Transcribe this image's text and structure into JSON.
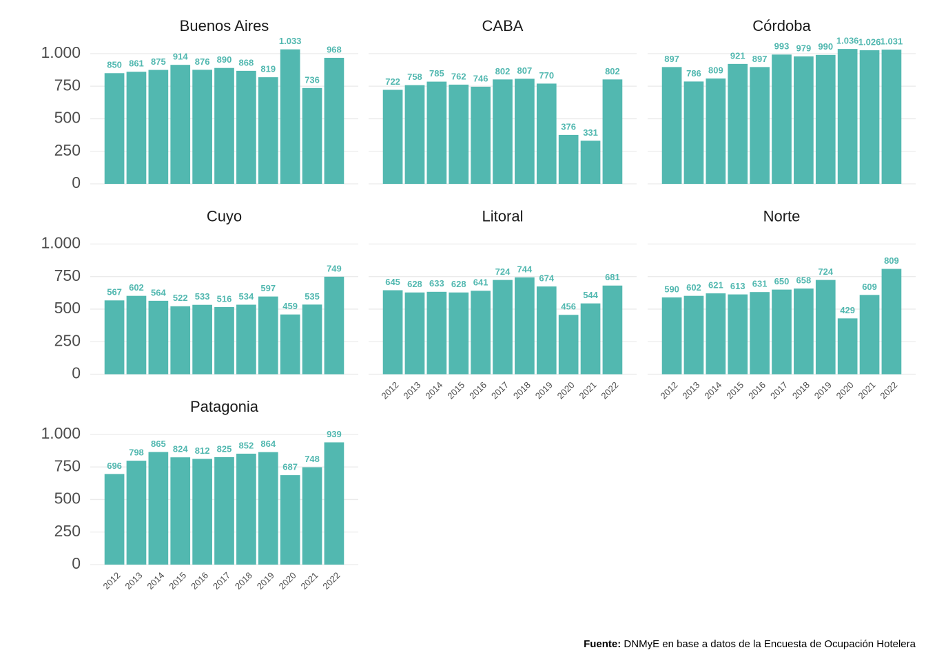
{
  "chart_data": [
    {
      "type": "bar",
      "title": "Buenos Aires",
      "categories": [
        null,
        null,
        null,
        null,
        null,
        null,
        null,
        null,
        null,
        null,
        null
      ],
      "values": [
        850,
        861,
        875,
        914,
        876,
        890,
        868,
        819,
        1033,
        736,
        968
      ],
      "value_labels": [
        "850",
        "861",
        "875",
        "914",
        "876",
        "890",
        "868",
        "819",
        "1.033",
        "736",
        "968"
      ],
      "color": "#52b8b0",
      "ylim": [
        0,
        1100
      ],
      "yticks": [
        {
          "value": 0,
          "label": "0"
        },
        {
          "value": 250,
          "label": "250"
        },
        {
          "value": 500,
          "label": "500"
        },
        {
          "value": 750,
          "label": "750"
        },
        {
          "value": 1000,
          "label": "1.000"
        }
      ],
      "grid": true
    },
    {
      "type": "bar",
      "title": "CABA",
      "categories": [
        null,
        null,
        null,
        null,
        null,
        null,
        null,
        null,
        null,
        null,
        null
      ],
      "values": [
        722,
        758,
        785,
        762,
        746,
        802,
        807,
        770,
        376,
        331,
        802
      ],
      "color": "#52b8b0",
      "ylim": [
        0,
        1100
      ],
      "yticks": [
        0,
        250,
        500,
        750,
        1000
      ],
      "grid": true
    },
    {
      "type": "bar",
      "title": "Córdoba",
      "categories": [
        null,
        null,
        null,
        null,
        null,
        null,
        null,
        null,
        null,
        null,
        null
      ],
      "values": [
        897,
        786,
        809,
        921,
        897,
        993,
        979,
        990,
        1036,
        1026,
        1031
      ],
      "value_labels": [
        "897",
        "786",
        "809",
        "921",
        "897",
        "993",
        "979",
        "990",
        "1.036",
        "1.026",
        "1.031"
      ],
      "color": "#52b8b0",
      "ylim": [
        0,
        1100
      ],
      "yticks": [
        0,
        250,
        500,
        750,
        1000
      ],
      "grid": true
    },
    {
      "type": "bar",
      "title": "Cuyo",
      "categories": [
        null,
        null,
        null,
        null,
        null,
        null,
        null,
        null,
        null,
        null,
        null
      ],
      "values": [
        567,
        602,
        564,
        522,
        533,
        516,
        534,
        597,
        459,
        535,
        749
      ],
      "color": "#52b8b0",
      "ylim": [
        0,
        1100
      ],
      "yticks": [
        {
          "value": 0,
          "label": "0"
        },
        {
          "value": 250,
          "label": "250"
        },
        {
          "value": 500,
          "label": "500"
        },
        {
          "value": 750,
          "label": "750"
        },
        {
          "value": 1000,
          "label": "1.000"
        }
      ],
      "grid": true
    },
    {
      "type": "bar",
      "title": "Litoral",
      "categories": [
        "2012",
        "2013",
        "2014",
        "2015",
        "2016",
        "2017",
        "2018",
        "2019",
        "2020",
        "2021",
        "2022"
      ],
      "values": [
        645,
        628,
        633,
        628,
        641,
        724,
        744,
        674,
        456,
        544,
        681
      ],
      "color": "#52b8b0",
      "ylim": [
        0,
        1100
      ],
      "yticks": [
        0,
        250,
        500,
        750,
        1000
      ],
      "grid": true
    },
    {
      "type": "bar",
      "title": "Norte",
      "categories": [
        "2012",
        "2013",
        "2014",
        "2015",
        "2016",
        "2017",
        "2018",
        "2019",
        "2020",
        "2021",
        "2022"
      ],
      "values": [
        590,
        602,
        621,
        613,
        631,
        650,
        658,
        724,
        429,
        609,
        809
      ],
      "color": "#52b8b0",
      "ylim": [
        0,
        1100
      ],
      "yticks": [
        0,
        250,
        500,
        750,
        1000
      ],
      "grid": true
    },
    {
      "type": "bar",
      "title": "Patagonia",
      "categories": [
        "2012",
        "2013",
        "2014",
        "2015",
        "2016",
        "2017",
        "2018",
        "2019",
        "2020",
        "2021",
        "2022"
      ],
      "values": [
        696,
        798,
        865,
        824,
        812,
        825,
        852,
        864,
        687,
        748,
        939
      ],
      "color": "#52b8b0",
      "ylim": [
        0,
        1100
      ],
      "yticks": [
        {
          "value": 0,
          "label": "0"
        },
        {
          "value": 250,
          "label": "250"
        },
        {
          "value": 500,
          "label": "500"
        },
        {
          "value": 750,
          "label": "750"
        },
        {
          "value": 1000,
          "label": "1.000"
        }
      ],
      "grid": true
    }
  ],
  "caption": {
    "source_label": "Fuente:",
    "text": "DNMyE en base a datos de la Encuesta de Ocupación Hotelera"
  }
}
